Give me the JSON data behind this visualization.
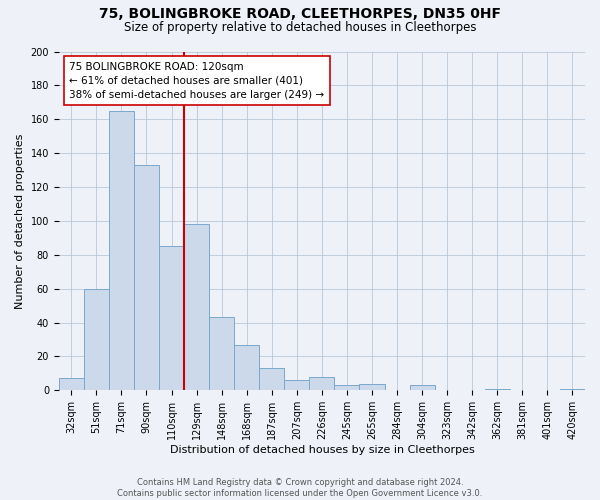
{
  "title": "75, BOLINGBROKE ROAD, CLEETHORPES, DN35 0HF",
  "subtitle": "Size of property relative to detached houses in Cleethorpes",
  "xlabel": "Distribution of detached houses by size in Cleethorpes",
  "ylabel": "Number of detached properties",
  "bin_labels": [
    "32sqm",
    "51sqm",
    "71sqm",
    "90sqm",
    "110sqm",
    "129sqm",
    "148sqm",
    "168sqm",
    "187sqm",
    "207sqm",
    "226sqm",
    "245sqm",
    "265sqm",
    "284sqm",
    "304sqm",
    "323sqm",
    "342sqm",
    "362sqm",
    "381sqm",
    "401sqm",
    "420sqm"
  ],
  "bar_values": [
    7,
    60,
    165,
    133,
    85,
    98,
    43,
    27,
    13,
    6,
    8,
    3,
    4,
    0,
    3,
    0,
    0,
    1,
    0,
    0,
    1
  ],
  "bar_color": "#ccd9eb",
  "bar_edge_color": "#7aa8cb",
  "vline_color": "#cc0000",
  "annotation_line1": "75 BOLINGBROKE ROAD: 120sqm",
  "annotation_line2": "← 61% of detached houses are smaller (401)",
  "annotation_line3": "38% of semi-detached houses are larger (249) →",
  "annotation_box_color": "#ffffff",
  "annotation_box_edge": "#cc0000",
  "ylim": [
    0,
    200
  ],
  "yticks": [
    0,
    20,
    40,
    60,
    80,
    100,
    120,
    140,
    160,
    180,
    200
  ],
  "footer_line1": "Contains HM Land Registry data © Crown copyright and database right 2024.",
  "footer_line2": "Contains public sector information licensed under the Open Government Licence v3.0.",
  "bg_color": "#eef2f8",
  "grid_color": "#b8c8d8",
  "title_fontsize": 10,
  "subtitle_fontsize": 8.5,
  "tick_fontsize": 7,
  "ylabel_fontsize": 8,
  "xlabel_fontsize": 8,
  "footer_fontsize": 6,
  "annot_fontsize": 7.5
}
